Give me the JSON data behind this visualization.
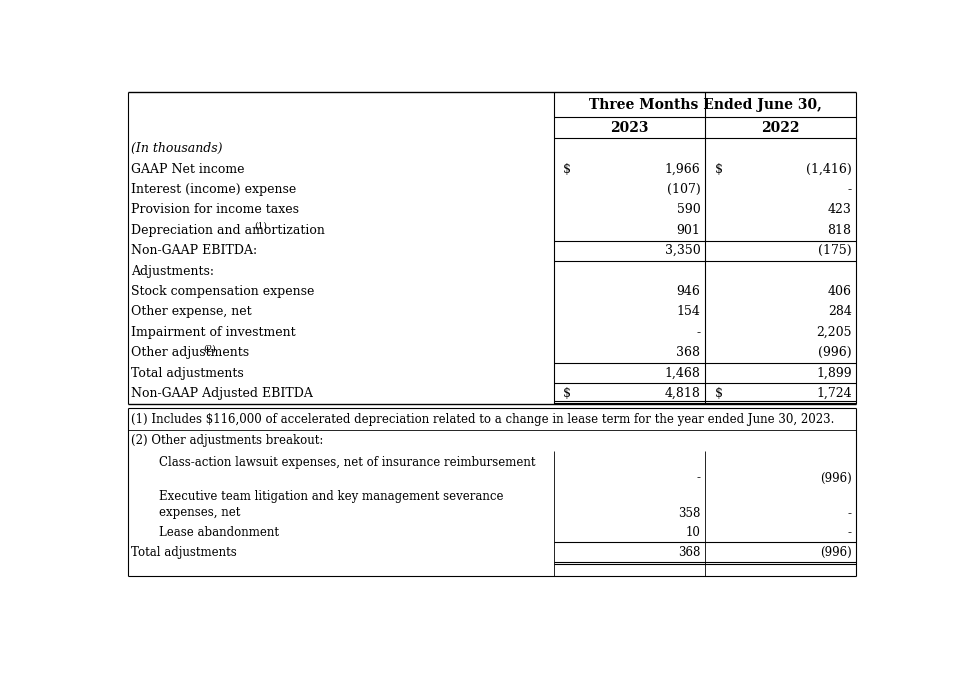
{
  "bg_color": "#ffffff",
  "title": "Three Months Ended June 30,",
  "col_headers": [
    "2023",
    "2022"
  ],
  "font_size": 9.0,
  "header_font_size": 10.0,
  "rows": [
    {
      "label": "(In thousands)",
      "italic": true,
      "val2023": "",
      "val2022": "",
      "dollar2023": false,
      "dollar2022": false,
      "border_top_cols": [],
      "border_bottom_cols": [],
      "double_bottom": false
    },
    {
      "label": "GAAP Net income",
      "italic": false,
      "val2023": "1,966",
      "val2022": "(1,416)",
      "dollar2023": true,
      "dollar2022": true,
      "border_top_cols": [],
      "border_bottom_cols": [],
      "double_bottom": false
    },
    {
      "label": "Interest (income) expense",
      "italic": false,
      "val2023": "(107)",
      "val2022": "-",
      "dollar2023": false,
      "dollar2022": false,
      "border_top_cols": [],
      "border_bottom_cols": [],
      "double_bottom": false
    },
    {
      "label": "Provision for income taxes",
      "italic": false,
      "val2023": "590",
      "val2022": "423",
      "dollar2023": false,
      "dollar2022": false,
      "border_top_cols": [],
      "border_bottom_cols": [],
      "double_bottom": false
    },
    {
      "label": "Depreciation and amortization",
      "sup": "(1)",
      "italic": false,
      "val2023": "901",
      "val2022": "818",
      "dollar2023": false,
      "dollar2022": false,
      "border_top_cols": [],
      "border_bottom_cols": [],
      "double_bottom": false
    },
    {
      "label": "Non-GAAP EBITDA:",
      "italic": false,
      "val2023": "3,350",
      "val2022": "(175)",
      "dollar2023": false,
      "dollar2022": false,
      "border_top_cols": [
        "2023",
        "2022"
      ],
      "border_bottom_cols": [
        "2023",
        "2022"
      ],
      "double_bottom": false
    },
    {
      "label": "Adjustments:",
      "italic": false,
      "val2023": "",
      "val2022": "",
      "dollar2023": false,
      "dollar2022": false,
      "border_top_cols": [],
      "border_bottom_cols": [],
      "double_bottom": false
    },
    {
      "label": "Stock compensation expense",
      "italic": false,
      "val2023": "946",
      "val2022": "406",
      "dollar2023": false,
      "dollar2022": false,
      "border_top_cols": [],
      "border_bottom_cols": [],
      "double_bottom": false
    },
    {
      "label": "Other expense, net",
      "italic": false,
      "val2023": "154",
      "val2022": "284",
      "dollar2023": false,
      "dollar2022": false,
      "border_top_cols": [],
      "border_bottom_cols": [],
      "double_bottom": false
    },
    {
      "label": "Impairment of investment",
      "italic": false,
      "val2023": "-",
      "val2022": "2,205",
      "dollar2023": false,
      "dollar2022": false,
      "border_top_cols": [],
      "border_bottom_cols": [],
      "double_bottom": false
    },
    {
      "label": "Other adjustments",
      "sup": "(2)",
      "italic": false,
      "val2023": "368",
      "val2022": "(996)",
      "dollar2023": false,
      "dollar2022": false,
      "border_top_cols": [],
      "border_bottom_cols": [
        "2023",
        "2022"
      ],
      "double_bottom": false
    },
    {
      "label": "Total adjustments",
      "italic": false,
      "val2023": "1,468",
      "val2022": "1,899",
      "dollar2023": false,
      "dollar2022": false,
      "border_top_cols": [],
      "border_bottom_cols": [],
      "double_bottom": false
    },
    {
      "label": "Non-GAAP Adjusted EBITDA",
      "italic": false,
      "val2023": "4,818",
      "val2022": "1,724",
      "dollar2023": true,
      "dollar2022": true,
      "border_top_cols": [
        "2023",
        "2022"
      ],
      "border_bottom_cols": [
        "2023",
        "2022"
      ],
      "double_bottom": true
    }
  ],
  "footnote1": "(1) Includes $116,000 of accelerated depreciation related to a change in lease term for the year ended June 30, 2023.",
  "footnote2_header": "(2) Other adjustments breakout:",
  "fn_rows": [
    {
      "label": "Class-action lawsuit expenses, net of insurance reimbursement",
      "label2": "",
      "indent": true,
      "val2023": "-",
      "val2022": "(996)",
      "border_top": false,
      "border_bottom": false,
      "tall": true
    },
    {
      "label": "Executive team litigation and key management severance",
      "label2": "expenses, net",
      "indent": true,
      "val2023": "358",
      "val2022": "-",
      "border_top": false,
      "border_bottom": false,
      "tall": true
    },
    {
      "label": "Lease abandonment",
      "label2": "",
      "indent": true,
      "val2023": "10",
      "val2022": "-",
      "border_top": false,
      "border_bottom": false,
      "tall": false
    },
    {
      "label": "Total adjustments",
      "label2": "",
      "indent": false,
      "val2023": "368",
      "val2022": "(996)",
      "border_top": true,
      "border_bottom": true,
      "tall": false
    }
  ]
}
